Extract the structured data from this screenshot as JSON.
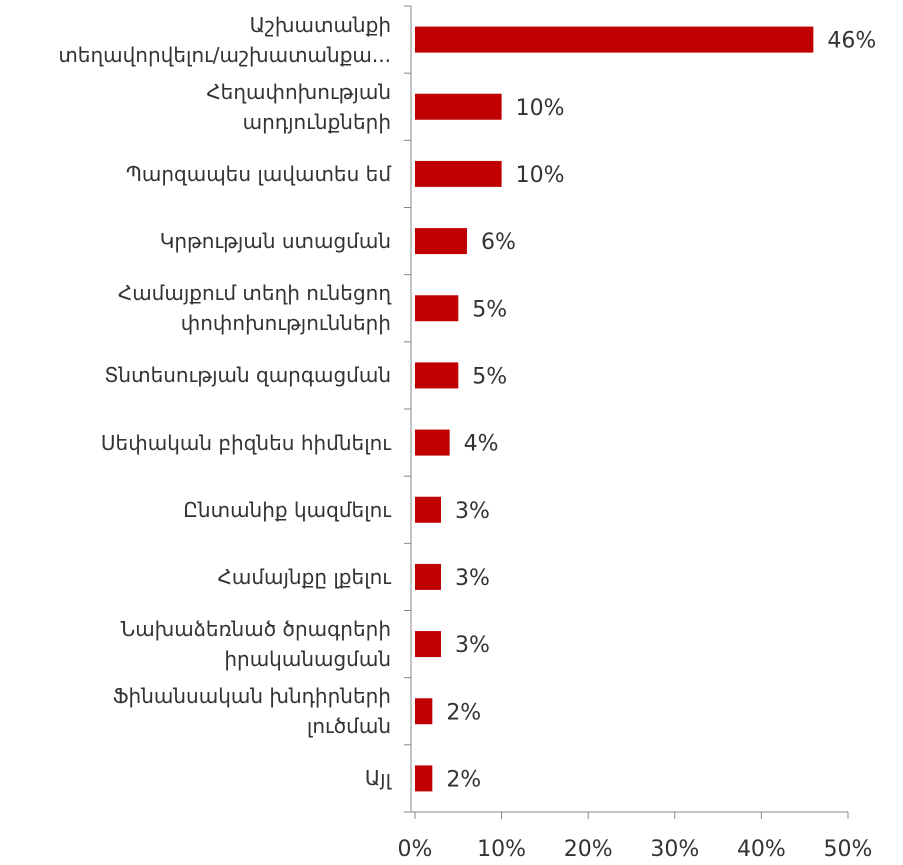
{
  "chart_data": {
    "type": "bar",
    "orientation": "horizontal",
    "categories": [
      "Աշխատանքի\nտեղավորվելու/աշխատանքա...",
      "Հեղափոխության\nարդյունքների",
      "Պարզապես լավատես եմ",
      "Կրթության ստացման",
      "Համայքում տեղի ունեցող\nփոփոխությունների",
      "Տնտեսության զարգացման",
      "Սեփական բիզնես հիմնելու",
      "Ընտանիք կազմելու",
      "Համայնքը լքելու",
      "Նախաձեռնած ծրագրերի\nիրականացման",
      "Ֆինանսական խնդիրների\nլուծման",
      "Այլ"
    ],
    "values": [
      46,
      10,
      10,
      6,
      5,
      5,
      4,
      3,
      3,
      3,
      2,
      2
    ],
    "value_labels": [
      "46%",
      "10%",
      "10%",
      "6%",
      "5%",
      "5%",
      "4%",
      "3%",
      "3%",
      "3%",
      "2%",
      "2%"
    ],
    "color": "#c00000",
    "xlim": [
      0,
      50
    ],
    "xticks": [
      {
        "value": 0,
        "label": "0%"
      },
      {
        "value": 10,
        "label": "10%"
      },
      {
        "value": 20,
        "label": "20%"
      },
      {
        "value": 30,
        "label": "30%"
      },
      {
        "value": 40,
        "label": "40%"
      },
      {
        "value": 50,
        "label": "50%"
      }
    ]
  }
}
